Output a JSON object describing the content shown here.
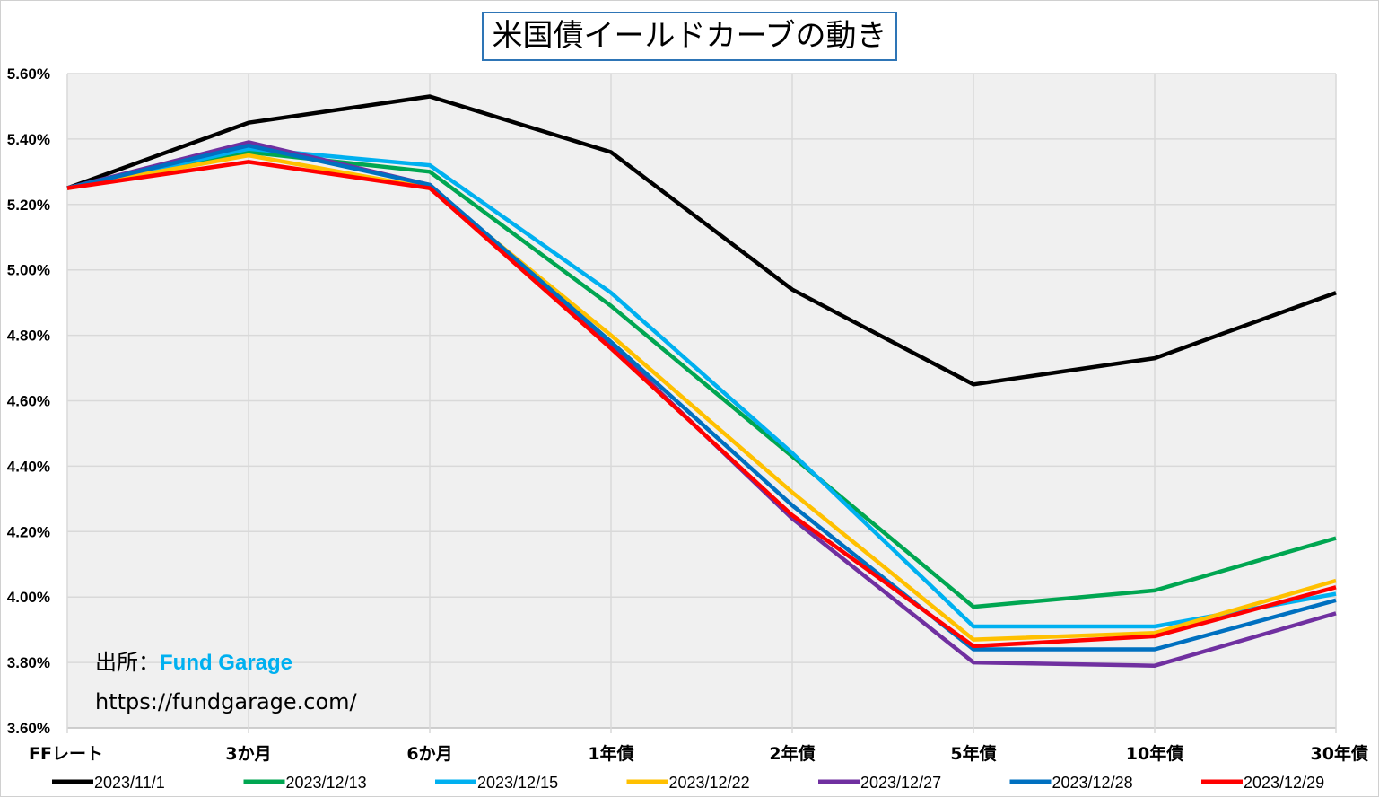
{
  "chart_data": {
    "type": "line",
    "title": "米国債イールドカーブの動き",
    "categories": [
      "FFレート",
      "3か月",
      "6か月",
      "1年債",
      "2年債",
      "5年債",
      "10年債",
      "30年債"
    ],
    "y_ticks": [
      "5.60%",
      "5.40%",
      "5.20%",
      "5.00%",
      "4.80%",
      "4.60%",
      "4.40%",
      "4.20%",
      "4.00%",
      "3.80%",
      "3.60%"
    ],
    "ylim": [
      3.6,
      5.6
    ],
    "y_unit": "%",
    "grid": true,
    "legend_position": "bottom",
    "series": [
      {
        "name": "2023/11/1",
        "color": "#000000",
        "values": [
          5.25,
          5.45,
          5.53,
          5.36,
          4.94,
          4.65,
          4.73,
          4.93
        ]
      },
      {
        "name": "2023/12/13",
        "color": "#00a651",
        "values": [
          5.25,
          5.36,
          5.3,
          4.89,
          4.43,
          3.97,
          4.02,
          4.18
        ]
      },
      {
        "name": "2023/12/15",
        "color": "#00b0f0",
        "values": [
          5.25,
          5.37,
          5.32,
          4.93,
          4.44,
          3.91,
          3.91,
          4.01
        ]
      },
      {
        "name": "2023/12/22",
        "color": "#ffc000",
        "values": [
          5.25,
          5.35,
          5.25,
          4.8,
          4.32,
          3.87,
          3.89,
          4.05
        ]
      },
      {
        "name": "2023/12/27",
        "color": "#7030a0",
        "values": [
          5.25,
          5.39,
          5.26,
          4.77,
          4.24,
          3.8,
          3.79,
          3.95
        ]
      },
      {
        "name": "2023/12/28",
        "color": "#0070c0",
        "values": [
          5.25,
          5.38,
          5.26,
          4.78,
          4.28,
          3.84,
          3.84,
          3.99
        ]
      },
      {
        "name": "2023/12/29",
        "color": "#ff0000",
        "values": [
          5.25,
          5.33,
          5.25,
          4.76,
          4.25,
          3.85,
          3.88,
          4.03
        ]
      }
    ]
  },
  "source": {
    "label": "出所：",
    "name": "Fund Garage",
    "url": "https://fundgarage.com/"
  }
}
